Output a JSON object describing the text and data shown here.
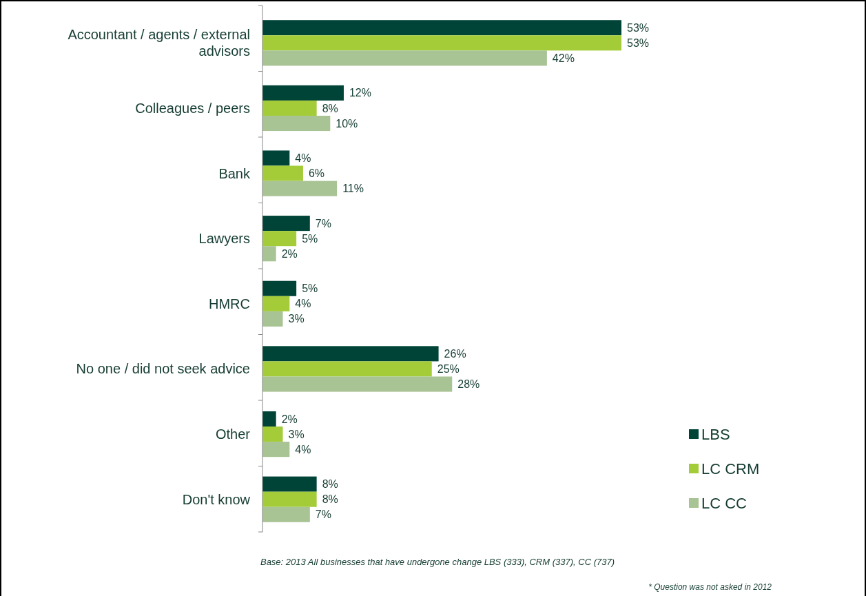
{
  "chart_data": {
    "type": "bar",
    "orientation": "horizontal",
    "categories": [
      "Accountant / agents / external advisors",
      "Colleagues / peers",
      "Bank",
      "Lawyers",
      "HMRC",
      "No one / did not seek advice",
      "Other",
      "Don't know"
    ],
    "series": [
      {
        "name": "LBS",
        "color": "#004438",
        "values": [
          53,
          12,
          4,
          7,
          5,
          26,
          2,
          8
        ],
        "value_labels": [
          "53%",
          "12%",
          "4%",
          "7%",
          "5%",
          "26%",
          "2%",
          "8%"
        ]
      },
      {
        "name": "LC CRM",
        "color": "#a4cc39",
        "values": [
          53,
          8,
          6,
          5,
          4,
          25,
          3,
          8
        ],
        "value_labels": [
          "53%",
          "8%",
          "6%",
          "5%",
          "4%",
          "25%",
          "3%",
          "8%"
        ]
      },
      {
        "name": "LC CC",
        "color": "#a8c394",
        "values": [
          42,
          10,
          11,
          2,
          3,
          28,
          4,
          7
        ],
        "value_labels": [
          "42%",
          "10%",
          "11%",
          "2%",
          "3%",
          "28%",
          "4%",
          "7%"
        ]
      }
    ],
    "legend": "bottom right",
    "annotations": [
      "Base:   2013 All  businesses  that have undergone change LBS (333), CRM (337), CC (737)",
      "* Question was not asked in 2012"
    ]
  }
}
